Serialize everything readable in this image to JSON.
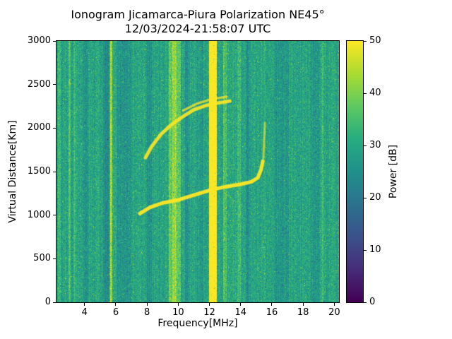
{
  "chart_data": {
    "type": "heatmap",
    "title": "Ionogram Jicamarca-Piura Polarization NE45°",
    "subtitle": "12/03/2024-21:58:07 UTC",
    "xlabel": "Frequency[MHz]",
    "ylabel": "Virtual Distance[Km]",
    "xlim": [
      2.2,
      20.3
    ],
    "ylim": [
      0,
      3000
    ],
    "xticks": [
      4,
      6,
      8,
      10,
      12,
      14,
      16,
      18,
      20
    ],
    "yticks": [
      0,
      500,
      1000,
      1500,
      2000,
      2500,
      3000
    ],
    "grid": false,
    "colorbar": {
      "label": "Power [dB]",
      "min": 0,
      "max": 50,
      "ticks": [
        0,
        10,
        20,
        30,
        40,
        50
      ],
      "colormap": "viridis",
      "stops": [
        "#440154",
        "#472d7b",
        "#3b528b",
        "#2c728e",
        "#21918c",
        "#27ad81",
        "#5ec962",
        "#aadc32",
        "#fde725"
      ]
    },
    "background": {
      "mean_db": 29.5,
      "noise_half_range_db": 8,
      "column_jitter_db": 2.2
    },
    "rfi_stripes": [
      {
        "f0": 2.3,
        "f1": 2.45,
        "db": 5
      },
      {
        "f0": 2.95,
        "f1": 3.1,
        "db": 6
      },
      {
        "f0": 3.3,
        "f1": 3.42,
        "db": 4
      },
      {
        "f0": 3.9,
        "f1": 4.25,
        "db": -4
      },
      {
        "f0": 5.2,
        "f1": 5.55,
        "db": -5
      },
      {
        "f0": 5.62,
        "f1": 5.78,
        "db": 14
      },
      {
        "f0": 6.1,
        "f1": 7.0,
        "db": -3.5
      },
      {
        "f0": 8.0,
        "f1": 8.3,
        "db": -4
      },
      {
        "f0": 9.4,
        "f1": 10.15,
        "db": 8
      },
      {
        "f0": 9.6,
        "f1": 9.9,
        "db": 4
      },
      {
        "f0": 10.45,
        "f1": 10.7,
        "db": -4
      },
      {
        "f0": 11.35,
        "f1": 11.6,
        "db": -3
      },
      {
        "f0": 11.98,
        "f1": 12.45,
        "db": 25
      },
      {
        "f0": 12.9,
        "f1": 13.1,
        "db": 7
      },
      {
        "f0": 13.8,
        "f1": 14.0,
        "db": 4
      },
      {
        "f0": 14.35,
        "f1": 14.55,
        "db": -4
      },
      {
        "f0": 16.2,
        "f1": 17.1,
        "db": -3
      },
      {
        "f0": 18.5,
        "f1": 19.05,
        "db": -2.5
      },
      {
        "f0": 19.15,
        "f1": 19.3,
        "db": 4
      }
    ],
    "trace_color": "#fde725",
    "traces": [
      {
        "name": "first-hop-echo",
        "width_km": 42,
        "alpha": 0.95,
        "points": [
          [
            7.55,
            1020
          ],
          [
            8.2,
            1090
          ],
          [
            9.0,
            1140
          ],
          [
            10.0,
            1175
          ],
          [
            11.0,
            1230
          ],
          [
            12.0,
            1285
          ],
          [
            13.0,
            1325
          ],
          [
            14.0,
            1355
          ],
          [
            14.7,
            1385
          ],
          [
            15.1,
            1430
          ],
          [
            15.3,
            1520
          ],
          [
            15.42,
            1620
          ]
        ]
      },
      {
        "name": "second-hop-echo",
        "width_km": 40,
        "alpha": 0.9,
        "points": [
          [
            7.9,
            1660
          ],
          [
            8.3,
            1790
          ],
          [
            8.9,
            1930
          ],
          [
            9.5,
            2030
          ],
          [
            10.2,
            2120
          ],
          [
            11.0,
            2210
          ],
          [
            11.8,
            2260
          ],
          [
            12.6,
            2290
          ],
          [
            13.3,
            2310
          ]
        ]
      },
      {
        "name": "second-hop-upper-branch",
        "width_km": 26,
        "alpha": 0.75,
        "points": [
          [
            10.3,
            2200
          ],
          [
            11.2,
            2280
          ],
          [
            12.1,
            2330
          ],
          [
            13.1,
            2360
          ]
        ]
      },
      {
        "name": "cusp-spread-streak",
        "width_km": 24,
        "alpha": 0.6,
        "points": [
          [
            15.45,
            1650
          ],
          [
            15.55,
            2060
          ]
        ]
      }
    ]
  }
}
